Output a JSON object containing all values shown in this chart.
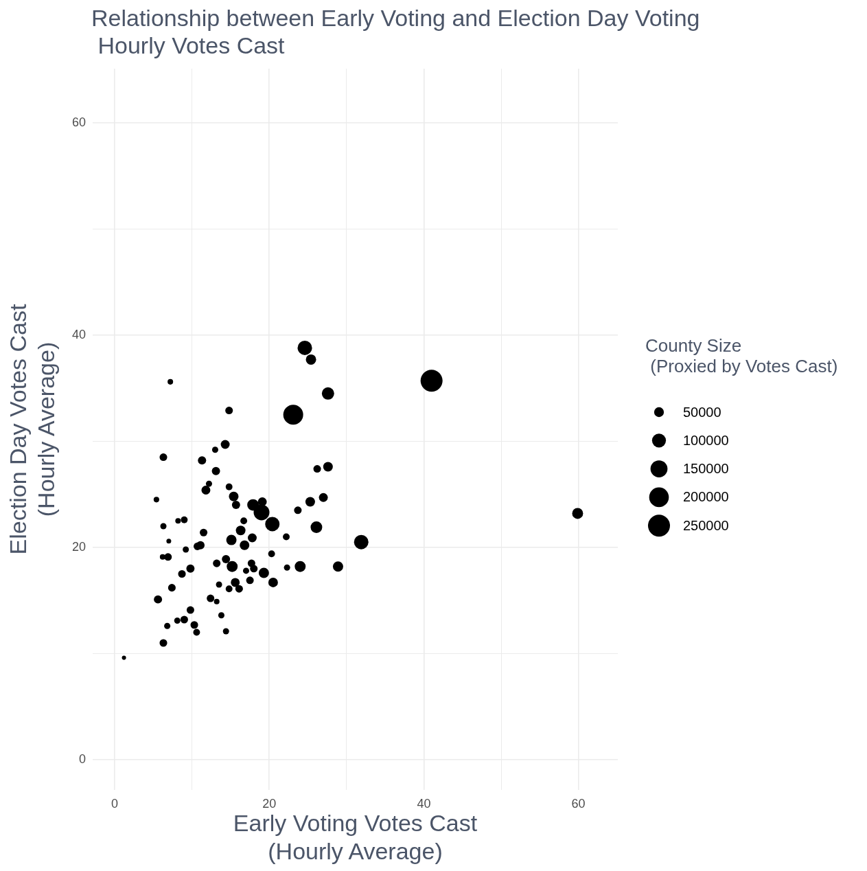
{
  "chart_data": {
    "type": "bubble",
    "title": "Relationship between Early Voting and Election Day Voting\n Hourly Votes Cast",
    "xlabel": "Early Voting Votes Cast\n(Hourly Average)",
    "ylabel": "Election Day Votes Cast\n(Hourly Average)",
    "legend_title": "County Size\n (Proxied by Votes Cast)",
    "color": "#000000",
    "x": [
      7.2,
      14.8,
      14.3,
      13.0,
      6.3,
      11.3,
      13.1,
      12.2,
      11.8,
      14.8,
      15.4,
      15.7,
      5.4,
      8.2,
      9.0,
      6.3,
      11.5,
      16.7,
      16.3,
      7.0,
      15.1,
      16.8,
      10.7,
      11.1,
      9.2,
      6.2,
      6.9,
      13.2,
      14.4,
      15.2,
      9.8,
      8.7,
      15.6,
      13.5,
      14.8,
      16.1,
      7.4,
      5.6,
      12.4,
      13.2,
      9.8,
      13.8,
      8.1,
      9.0,
      10.3,
      10.6,
      6.8,
      14.4,
      6.3,
      1.2,
      24.6,
      25.4,
      27.6,
      23.1,
      26.2,
      27.6,
      27.0,
      25.3,
      23.7,
      26.1,
      31.9,
      22.2,
      20.4,
      17.9,
      19.1,
      19.0,
      17.8,
      20.3,
      22.3,
      24.0,
      28.9,
      17.7,
      18.0,
      17.0,
      19.3,
      17.5,
      20.5,
      59.9,
      41.0
    ],
    "values": [
      35.6,
      32.9,
      29.7,
      29.2,
      28.5,
      28.2,
      27.2,
      26.0,
      25.4,
      25.7,
      24.8,
      24.0,
      24.5,
      22.5,
      22.6,
      22.0,
      21.4,
      22.5,
      21.6,
      20.6,
      20.7,
      20.2,
      20.1,
      20.2,
      19.8,
      19.1,
      19.1,
      18.5,
      18.9,
      18.2,
      18.0,
      17.5,
      16.7,
      16.5,
      16.1,
      16.1,
      16.2,
      15.1,
      15.2,
      14.9,
      14.1,
      13.6,
      13.1,
      13.2,
      12.7,
      12.0,
      12.6,
      12.1,
      11.0,
      9.6,
      38.8,
      37.7,
      34.5,
      32.5,
      27.4,
      27.6,
      24.7,
      24.3,
      23.5,
      21.9,
      20.5,
      21.0,
      22.2,
      24.0,
      24.3,
      23.3,
      20.9,
      19.4,
      18.1,
      18.2,
      18.2,
      18.5,
      18.0,
      17.8,
      17.6,
      16.9,
      16.7,
      23.2,
      35.7
    ],
    "sizes": [
      16000,
      30000,
      41000,
      20000,
      30000,
      35000,
      35000,
      20000,
      41000,
      24000,
      48000,
      35000,
      16000,
      16000,
      24000,
      20000,
      30000,
      24000,
      48000,
      12000,
      55000,
      48000,
      30000,
      35000,
      20000,
      16000,
      30000,
      30000,
      35000,
      62000,
      35000,
      30000,
      41000,
      20000,
      24000,
      30000,
      30000,
      35000,
      30000,
      16000,
      30000,
      20000,
      20000,
      30000,
      30000,
      24000,
      20000,
      20000,
      30000,
      9000,
      108000,
      55000,
      79000,
      205000,
      30000,
      48000,
      41000,
      48000,
      30000,
      70000,
      108000,
      24000,
      108000,
      70000,
      41000,
      129000,
      41000,
      24000,
      20000,
      62000,
      55000,
      30000,
      30000,
      20000,
      55000,
      30000,
      48000,
      62000,
      250000
    ],
    "size_legend": [
      50000,
      100000,
      150000,
      200000,
      250000
    ],
    "xlim": [
      -2.85,
      65.1
    ],
    "ylim": [
      -2.85,
      65.1
    ],
    "xticks": [
      0,
      {
        "value": 10,
        "label": null
      },
      20,
      {
        "value": 30,
        "label": null
      },
      40,
      {
        "value": 50,
        "label": null
      },
      60
    ],
    "yticks": [
      0,
      {
        "value": 10,
        "label": null
      },
      20,
      {
        "value": 30,
        "label": null
      },
      40,
      {
        "value": 50,
        "label": null
      },
      60
    ],
    "grid": true
  }
}
